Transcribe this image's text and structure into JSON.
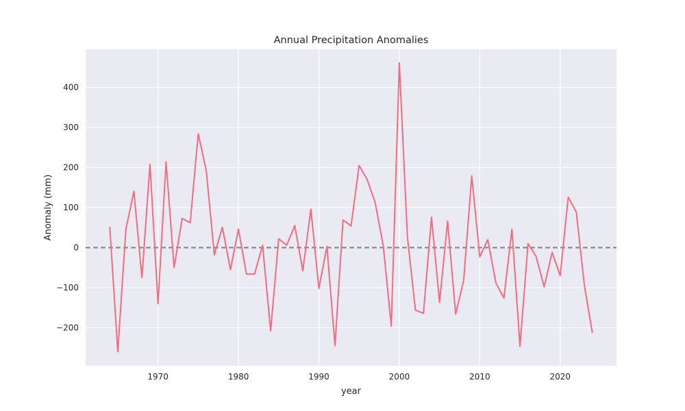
{
  "chart_data": {
    "type": "line",
    "title": "Annual Precipitation Anomalies",
    "xlabel": "year",
    "ylabel": "Anomaly (mm)",
    "xlim": [
      1961,
      2027
    ],
    "ylim": [
      -295,
      495
    ],
    "x_ticks": [
      1970,
      1980,
      1990,
      2000,
      2010,
      2020
    ],
    "y_ticks": [
      -200,
      -100,
      0,
      100,
      200,
      300,
      400
    ],
    "y_tick_labels": [
      "−200",
      "−100",
      "0",
      "100",
      "200",
      "300",
      "400"
    ],
    "grid": true,
    "background": "#eaeaf2",
    "grid_color": "#ffffff",
    "series": [
      {
        "color": "#f26b7f",
        "x": [
          1964,
          1965,
          1966,
          1967,
          1968,
          1969,
          1970,
          1971,
          1972,
          1973,
          1974,
          1975,
          1976,
          1977,
          1978,
          1979,
          1980,
          1981,
          1982,
          1983,
          1984,
          1985,
          1986,
          1987,
          1988,
          1989,
          1990,
          1991,
          1992,
          1993,
          1994,
          1995,
          1996,
          1997,
          1998,
          1999,
          2000,
          2001,
          2002,
          2003,
          2004,
          2005,
          2006,
          2007,
          2008,
          2009,
          2010,
          2011,
          2012,
          2013,
          2014,
          2015,
          2016,
          2017,
          2018,
          2019,
          2020,
          2021,
          2022,
          2023,
          2024
        ],
        "y": [
          52,
          -260,
          45,
          141,
          -75,
          208,
          -140,
          214,
          -50,
          73,
          62,
          284,
          192,
          -18,
          51,
          -55,
          46,
          -66,
          -66,
          6,
          -208,
          22,
          6,
          55,
          -58,
          96,
          -102,
          3,
          -245,
          69,
          54,
          205,
          170,
          112,
          5,
          -196,
          461,
          28,
          -156,
          -164,
          76,
          -137,
          66,
          -166,
          -82,
          179,
          -23,
          20,
          -88,
          -126,
          46,
          -247,
          10,
          -22,
          -98,
          -12,
          -70,
          126,
          89,
          -93,
          -213
        ]
      }
    ],
    "reference_line": {
      "y": 0,
      "style": "dashed",
      "color": "#808080"
    }
  }
}
